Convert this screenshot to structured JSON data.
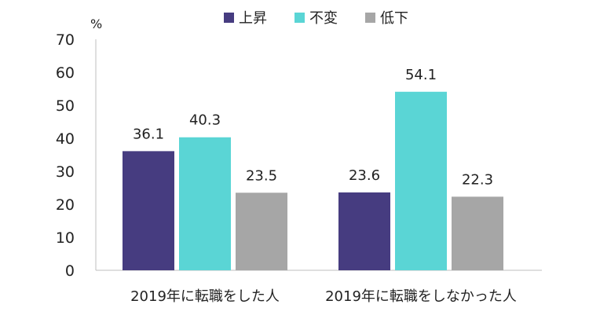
{
  "chart_data": {
    "type": "bar",
    "unit_label": "%",
    "categories": [
      "2019年に転職をした人",
      "2019年に転職をしなかった人"
    ],
    "series": [
      {
        "name": "上昇",
        "color": "#463c80",
        "values": [
          36.1,
          23.6
        ]
      },
      {
        "name": "不変",
        "color": "#5ad5d5",
        "values": [
          40.3,
          54.1
        ]
      },
      {
        "name": "低下",
        "color": "#a6a6a6",
        "values": [
          23.5,
          22.3
        ]
      }
    ],
    "y_ticks": [
      "0",
      "10",
      "20",
      "30",
      "40",
      "50",
      "60",
      "70"
    ],
    "ylim": [
      0,
      70
    ],
    "grid": false,
    "legend_position": "top"
  }
}
